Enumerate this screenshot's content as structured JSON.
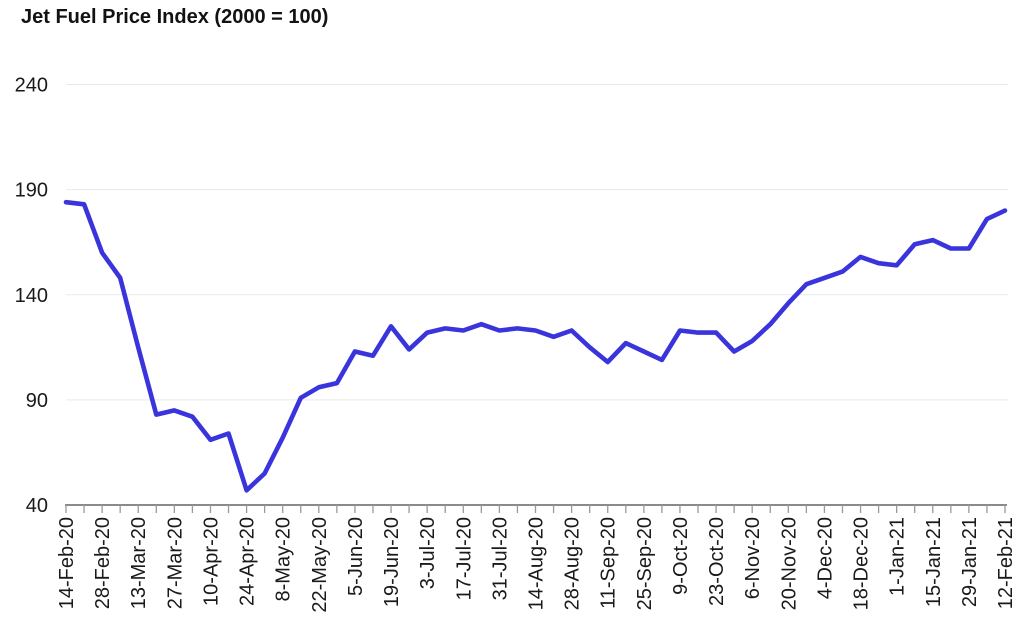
{
  "title": "Jet Fuel Price Index (2000 = 100)",
  "colors": {
    "line": "#3a34dc",
    "grid": "#e9e9e9",
    "axis": "#8a8a8a",
    "tick": "#999999",
    "text": "#1a1a1a",
    "background": "#ffffff"
  },
  "chart_data": {
    "type": "line",
    "title": "Jet Fuel Price Index (2000 = 100)",
    "categories": [
      "14-Feb-20",
      "28-Feb-20",
      "13-Mar-20",
      "27-Mar-20",
      "10-Apr-20",
      "24-Apr-20",
      "8-May-20",
      "22-May-20",
      "5-Jun-20",
      "19-Jun-20",
      "3-Jul-20",
      "17-Jul-20",
      "31-Jul-20",
      "14-Aug-20",
      "28-Aug-20",
      "11-Sep-20",
      "25-Sep-20",
      "9-Oct-20",
      "23-Oct-20",
      "6-Nov-20",
      "20-Nov-20",
      "4-Dec-20",
      "18-Dec-20",
      "1-Jan-21",
      "15-Jan-21",
      "29-Jan-21",
      "12-Feb-21"
    ],
    "label_stride": 2,
    "values": [
      184,
      183,
      160,
      148,
      115,
      83,
      85,
      82,
      71,
      74,
      47,
      55,
      72,
      91,
      96,
      98,
      113,
      111,
      125,
      114,
      122,
      124,
      123,
      126,
      123,
      124,
      123,
      120,
      123,
      115,
      108,
      117,
      113,
      109,
      123,
      122,
      122,
      113,
      118,
      126,
      136,
      145,
      148,
      151,
      158,
      155,
      154,
      164,
      166,
      162,
      162,
      176,
      180
    ],
    "ylim": [
      40,
      240
    ],
    "yticks": [
      40,
      90,
      140,
      190,
      240
    ],
    "xlabel": "",
    "ylabel": "",
    "grid": "horizontal",
    "legend": "none"
  }
}
